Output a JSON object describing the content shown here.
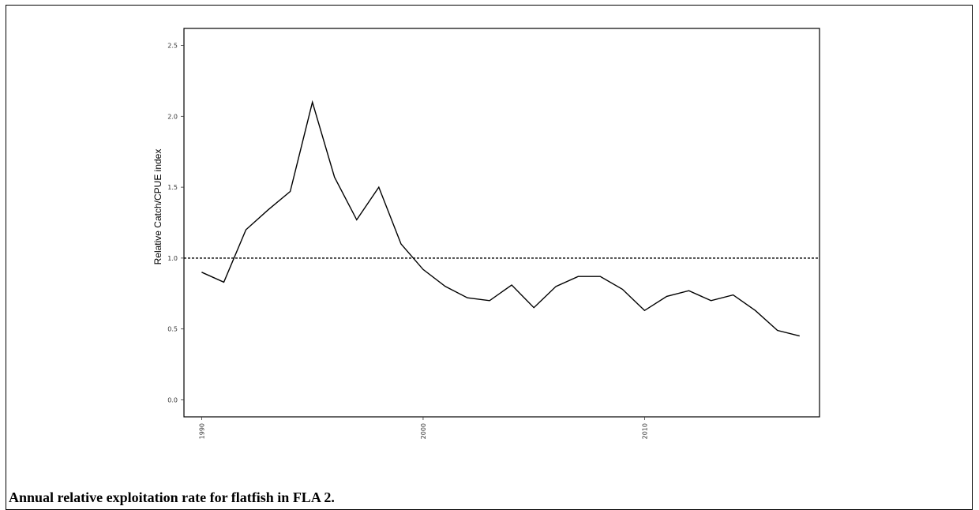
{
  "caption": "Annual relative exploitation rate for flatfish in FLA 2.",
  "chart_data": {
    "type": "line",
    "title": "",
    "xlabel": "",
    "ylabel": "Relative Catch/CPUE index",
    "xlim": [
      1989.2,
      2017.9
    ],
    "ylim": [
      -0.12,
      2.62
    ],
    "x_ticks": [
      1990,
      2000,
      2010
    ],
    "y_ticks": [
      0.0,
      0.5,
      1.0,
      1.5,
      2.0,
      2.5
    ],
    "y_tick_labels": [
      "0.0",
      "0.5",
      "1.0",
      "1.5",
      "2.0",
      "2.5"
    ],
    "reference_line": {
      "y": 1.0,
      "style": "dashed"
    },
    "grid": false,
    "x": [
      1990,
      1991,
      1992,
      1993,
      1994,
      1995,
      1996,
      1997,
      1998,
      1999,
      2000,
      2001,
      2002,
      2003,
      2004,
      2005,
      2006,
      2007,
      2008,
      2009,
      2010,
      2011,
      2012,
      2013,
      2014,
      2015,
      2016,
      2017
    ],
    "y": [
      0.9,
      0.83,
      1.2,
      1.34,
      1.47,
      2.1,
      1.57,
      1.27,
      1.5,
      1.1,
      0.92,
      0.8,
      0.72,
      0.7,
      0.81,
      0.65,
      0.8,
      0.87,
      0.87,
      0.78,
      0.63,
      0.73,
      0.77,
      0.7,
      0.74,
      0.63,
      0.49,
      0.45
    ],
    "line_color": "#000000"
  }
}
